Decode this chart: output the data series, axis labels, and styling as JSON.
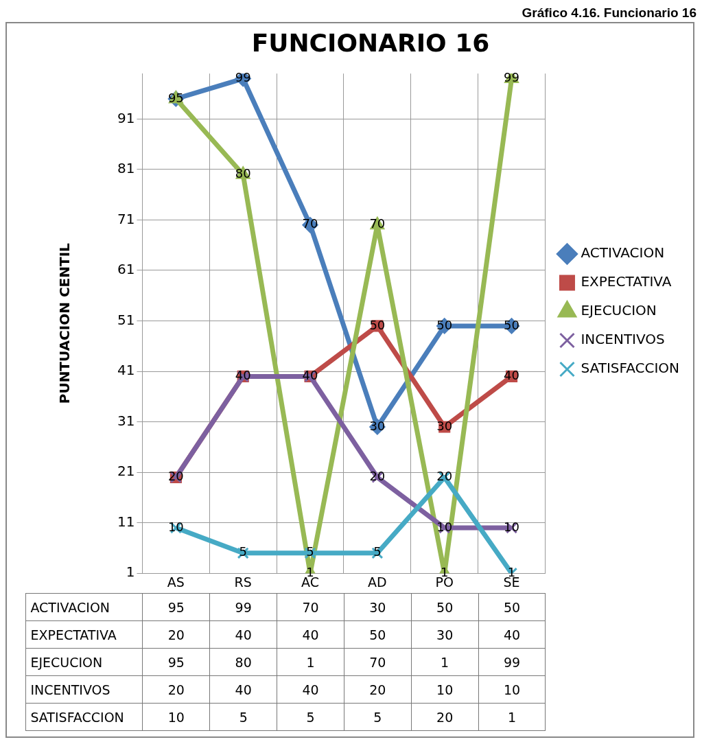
{
  "chart_data": {
    "type": "line",
    "title": "FUNCIONARIO 16",
    "ylabel": "PUNTUACION CENTIL",
    "annotations": [
      "Gráfico 4.16. Funcionario 16",
      {
        "text": "95",
        "x": "AS",
        "y": 95
      },
      {
        "text": "99",
        "x": "RS",
        "y": 99
      },
      {
        "text": "70",
        "x": "AC",
        "y": 70
      },
      {
        "text": "30",
        "x": "AD",
        "y": 30
      },
      {
        "text": "50",
        "x": "PO",
        "y": 50
      },
      {
        "text": "50",
        "x": "SE",
        "y": 50
      },
      {
        "text": "20",
        "x": "AS",
        "y": 20
      },
      {
        "text": "40",
        "x": "RS",
        "y": 40
      },
      {
        "text": "40",
        "x": "AC",
        "y": 40
      },
      {
        "text": "50",
        "x": "AD",
        "y": 50
      },
      {
        "text": "30",
        "x": "PO",
        "y": 30
      },
      {
        "text": "40",
        "x": "SE",
        "y": 40
      },
      {
        "text": "80",
        "x": "RS",
        "y": 80
      },
      {
        "text": "1",
        "x": "AC",
        "y": 1
      },
      {
        "text": "70",
        "x": "AD",
        "y": 70
      },
      {
        "text": "1",
        "x": "PO",
        "y": 1
      },
      {
        "text": "99",
        "x": "SE",
        "y": 99
      },
      {
        "text": "20",
        "x": "AD",
        "y": 20
      },
      {
        "text": "10",
        "x": "PO",
        "y": 10
      },
      {
        "text": "10",
        "x": "SE",
        "y": 10
      },
      {
        "text": "10",
        "x": "AS",
        "y": 10
      },
      {
        "text": "5",
        "x": "RS",
        "y": 5
      },
      {
        "text": "5",
        "x": "AC",
        "y": 5
      },
      {
        "text": "5",
        "x": "AD",
        "y": 5
      },
      {
        "text": "20",
        "x": "PO",
        "y": 20
      },
      {
        "text": "1",
        "x": "SE",
        "y": 1
      }
    ],
    "categories": [
      "AS",
      "RS",
      "AC",
      "AD",
      "PO",
      "SE"
    ],
    "series": [
      {
        "name": "ACTIVACION",
        "color": "#4a7ebb",
        "marker": "diamond",
        "values": [
          95,
          99,
          70,
          30,
          50,
          50
        ]
      },
      {
        "name": "EXPECTATIVA",
        "color": "#be4b48",
        "marker": "square",
        "values": [
          20,
          40,
          40,
          50,
          30,
          40
        ]
      },
      {
        "name": "EJECUCION",
        "color": "#98b954",
        "marker": "triangle",
        "values": [
          95,
          80,
          1,
          70,
          1,
          99
        ]
      },
      {
        "name": "INCENTIVOS",
        "color": "#7d60a0",
        "marker": "cross",
        "values": [
          20,
          40,
          40,
          20,
          10,
          10
        ]
      },
      {
        "name": "SATISFACCION",
        "color": "#46aac5",
        "marker": "cross",
        "values": [
          10,
          5,
          5,
          5,
          20,
          1
        ]
      }
    ],
    "ylim": [
      1,
      100
    ],
    "yticks": [
      1,
      11,
      21,
      31,
      41,
      51,
      61,
      71,
      81,
      91
    ],
    "grid": true,
    "legend": "right",
    "data_labels": true
  }
}
